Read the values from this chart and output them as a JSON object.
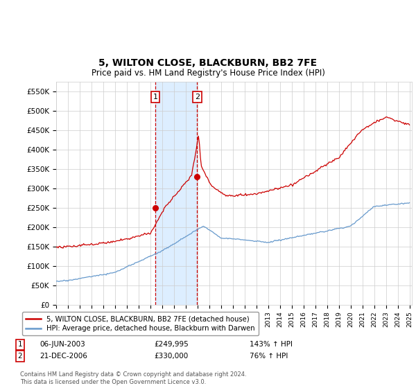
{
  "title": "5, WILTON CLOSE, BLACKBURN, BB2 7FE",
  "subtitle": "Price paid vs. HM Land Registry's House Price Index (HPI)",
  "ylim": [
    0,
    575000
  ],
  "yticks": [
    0,
    50000,
    100000,
    150000,
    200000,
    250000,
    300000,
    350000,
    400000,
    450000,
    500000,
    550000
  ],
  "ytick_labels": [
    "£0",
    "£50K",
    "£100K",
    "£150K",
    "£200K",
    "£250K",
    "£300K",
    "£350K",
    "£400K",
    "£450K",
    "£500K",
    "£550K"
  ],
  "transaction1_date": 2003.43,
  "transaction1_price": 249995,
  "transaction2_date": 2006.97,
  "transaction2_price": 330000,
  "line1_color": "#cc0000",
  "line2_color": "#6699cc",
  "shade_color": "#ddeeff",
  "grid_color": "#cccccc",
  "background_color": "#ffffff",
  "legend_line1": "5, WILTON CLOSE, BLACKBURN, BB2 7FE (detached house)",
  "legend_line2": "HPI: Average price, detached house, Blackburn with Darwen",
  "footer": "Contains HM Land Registry data © Crown copyright and database right 2024.\nThis data is licensed under the Open Government Licence v3.0.",
  "transaction_box_color": "#cc0000"
}
